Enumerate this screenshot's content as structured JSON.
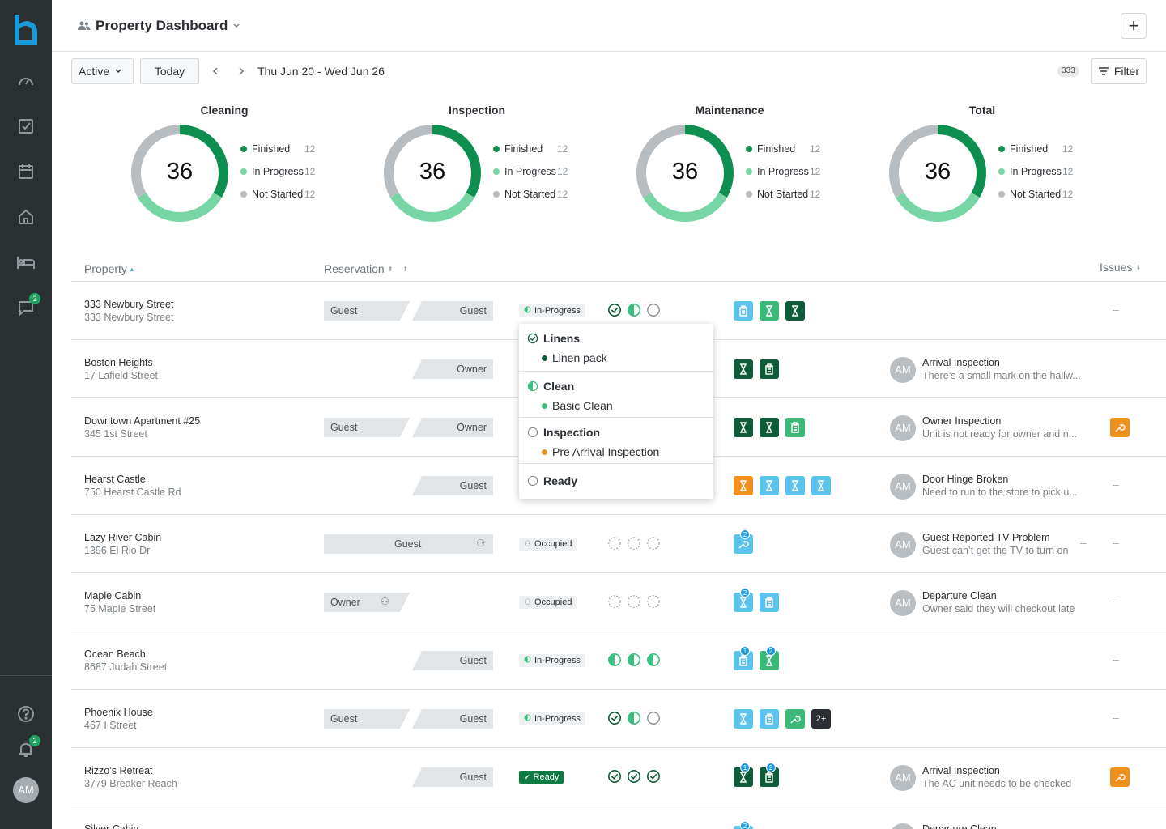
{
  "sidebar": {
    "nav": [
      "dashboard-icon",
      "tasks-icon",
      "calendar-icon",
      "home-icon",
      "bed-icon",
      "chat-icon"
    ],
    "chat_badge": "2",
    "help": "help-icon",
    "notif_badge": "2",
    "user_initials": "AM"
  },
  "header": {
    "title": "Property Dashboard",
    "add_label": "+"
  },
  "toolbar": {
    "status": "Active",
    "today": "Today",
    "date_range": "Thu Jun 20 - Wed Jun 26",
    "count": "333",
    "filter": "Filter"
  },
  "summary": [
    {
      "title": "Cleaning",
      "total": "36",
      "finished": 12,
      "in_progress": 12,
      "not_started": 12
    },
    {
      "title": "Inspection",
      "total": "36",
      "finished": 12,
      "in_progress": 12,
      "not_started": 12
    },
    {
      "title": "Maintenance",
      "total": "36",
      "finished": 12,
      "in_progress": 12,
      "not_started": 12
    },
    {
      "title": "Total",
      "total": "36",
      "finished": 12,
      "in_progress": 12,
      "not_started": 12
    }
  ],
  "legend_labels": {
    "finished": "Finished",
    "in_progress": "In Progress",
    "not_started": "Not Started"
  },
  "colors": {
    "finished": "#0e8f4f",
    "in_progress": "#78d6a6",
    "not_started": "#b8bdc1",
    "accent": "#1a9ad6",
    "orange": "#f0901c",
    "dark_green": "#0e5c3a"
  },
  "table": {
    "col_property": "Property",
    "col_reservation": "Reservation",
    "col_issues": "Issues"
  },
  "rows": [
    {
      "name": "333 Newbury Street",
      "address": "333 Newbury Street",
      "res_left": "Guest",
      "res_right": "Guest",
      "status": "In-Progress",
      "checks": [
        "done",
        "half",
        "empty"
      ],
      "tasks": [
        {
          "t": "clip",
          "c": "light"
        },
        {
          "t": "hour",
          "c": "green"
        },
        {
          "t": "hour",
          "c": "dark"
        }
      ],
      "issue": null,
      "issue_dash": "–"
    },
    {
      "name": "Boston Heights",
      "address": "17 Lafield Street",
      "res_left": null,
      "res_right": "Owner",
      "status": null,
      "checks": [],
      "tasks": [
        {
          "t": "hour",
          "c": "dark"
        },
        {
          "t": "clip",
          "c": "dark"
        }
      ],
      "issue": {
        "initials": "AM",
        "title": "Arrival Inspection",
        "desc": "There’s a small mark on the hallw..."
      },
      "issue_dash": null
    },
    {
      "name": "Downtown Apartment #25",
      "address": "345 1st Street",
      "res_left": "Guest",
      "res_right": "Owner",
      "status": null,
      "checks": [],
      "tasks": [
        {
          "t": "hour",
          "c": "dark"
        },
        {
          "t": "hour",
          "c": "dark"
        },
        {
          "t": "clip",
          "c": "green"
        }
      ],
      "issue": {
        "initials": "AM",
        "title": "Owner Inspection",
        "desc": "Unit is not ready for owner and n..."
      },
      "issue_btn": true
    },
    {
      "name": "Hearst Castle",
      "address": "750 Hearst Castle Rd",
      "res_left": null,
      "res_right": "Guest",
      "status": null,
      "checks": [],
      "tasks": [
        {
          "t": "hour",
          "c": "orange"
        },
        {
          "t": "hour",
          "c": "light"
        },
        {
          "t": "hour",
          "c": "light"
        },
        {
          "t": "hour",
          "c": "light"
        }
      ],
      "issue": {
        "initials": "AM",
        "title": "Door Hinge Broken",
        "desc": "Need to run to the store to pick u..."
      },
      "issue_dash": "–"
    },
    {
      "name": "Lazy River Cabin",
      "address": "1396 El Rio Dr",
      "res_full": "Guest",
      "status": "Occupied",
      "checks": [
        "dash",
        "dash",
        "dash"
      ],
      "tasks": [
        {
          "t": "wrench",
          "c": "light",
          "badge": "2"
        }
      ],
      "issue": {
        "initials": "AM",
        "title": "Guest Reported TV Problem",
        "desc": "Guest can’t get the TV to turn on"
      },
      "issue_dash": "–",
      "mid_dash": "–"
    },
    {
      "name": "Maple Cabin",
      "address": "75 Maple Street",
      "res_owner": "Owner",
      "status": "Occupied",
      "checks": [
        "dash",
        "dash",
        "dash"
      ],
      "tasks": [
        {
          "t": "hour",
          "c": "light",
          "badge": "2"
        },
        {
          "t": "clip",
          "c": "light"
        }
      ],
      "issue": {
        "initials": "AM",
        "title": "Departure Clean",
        "desc": "Owner said they will checkout late"
      },
      "issue_dash": "–"
    },
    {
      "name": "Ocean Beach",
      "address": "8687 Judah Street",
      "res_left": null,
      "res_right": "Guest",
      "status": "In-Progress",
      "checks": [
        "half",
        "half",
        "half"
      ],
      "tasks": [
        {
          "t": "clip",
          "c": "light",
          "badge": "1"
        },
        {
          "t": "hour",
          "c": "green",
          "badge": "2"
        }
      ],
      "issue": null,
      "issue_dash": "–"
    },
    {
      "name": "Phoenix House",
      "address": "467 I Street",
      "res_left": "Guest",
      "res_right": "Guest",
      "status": "In-Progress",
      "checks": [
        "done",
        "half",
        "empty"
      ],
      "tasks": [
        {
          "t": "hour",
          "c": "light"
        },
        {
          "t": "clip",
          "c": "light"
        },
        {
          "t": "wrench",
          "c": "green"
        },
        {
          "t": "more",
          "c": "black",
          "label": "2+"
        }
      ],
      "issue": null,
      "issue_dash": "–"
    },
    {
      "name": "Rizzo’s Retreat",
      "address": "3779 Breaker Reach",
      "res_left": null,
      "res_right": "Guest",
      "status": "Ready",
      "checks": [
        "done",
        "done",
        "done"
      ],
      "tasks": [
        {
          "t": "hour",
          "c": "dark",
          "badge": "1"
        },
        {
          "t": "clip",
          "c": "dark",
          "badge": "2"
        }
      ],
      "issue": {
        "initials": "AM",
        "title": "Arrival Inspection",
        "desc": "The AC unit needs to be checked"
      },
      "issue_btn": true
    },
    {
      "name": "Silver Cabin",
      "address": "",
      "res_left": null,
      "res_right": null,
      "status": null,
      "checks": [],
      "tasks": [
        {
          "t": "hour",
          "c": "light",
          "badge": "2"
        }
      ],
      "issue": {
        "initials": "AM",
        "title": "Departure Clean",
        "desc": ""
      },
      "issue_dash": null
    }
  ],
  "popover": {
    "sections": [
      {
        "title": "Linens",
        "state": "done",
        "item": "Linen pack",
        "item_color": "#0e5c3a"
      },
      {
        "title": "Clean",
        "state": "half",
        "item": "Basic Clean",
        "item_color": "#3cc07f"
      },
      {
        "title": "Inspection",
        "state": "empty",
        "item": "Pre Arrival Inspection",
        "item_color": "#f0901c"
      },
      {
        "title": "Ready",
        "state": "empty",
        "item": null
      }
    ]
  }
}
